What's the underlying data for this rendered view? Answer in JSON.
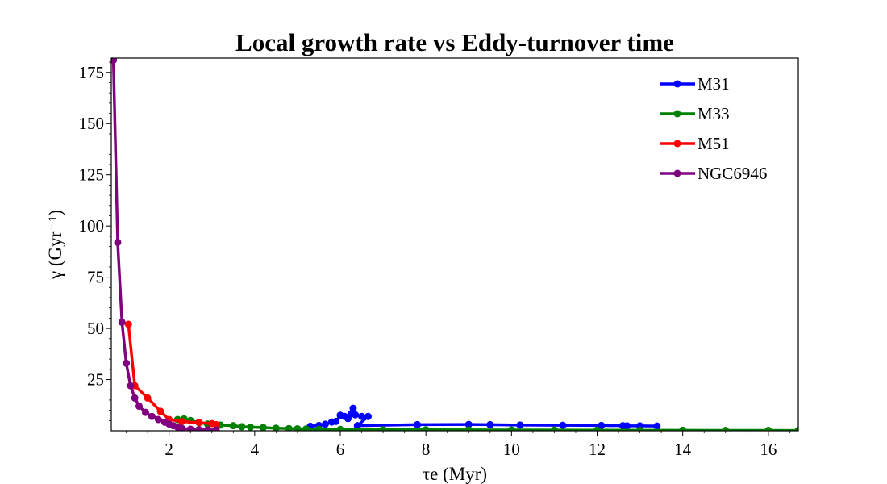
{
  "chart_data": {
    "type": "line",
    "title": "Local growth rate vs Eddy-turnover time",
    "xlabel": "τe (Myr)",
    "ylabel": "γ (Gyr⁻¹)",
    "xlim": [
      0.65,
      16.7
    ],
    "ylim": [
      0,
      182
    ],
    "x_ticks": [
      2,
      4,
      6,
      8,
      10,
      12,
      14,
      16
    ],
    "y_ticks": [
      25,
      50,
      75,
      100,
      125,
      150,
      175
    ],
    "legend_position": "top-right",
    "grid": false,
    "series": [
      {
        "name": "M31",
        "color": "#0000ff",
        "points": [
          [
            5.3,
            2.2
          ],
          [
            5.5,
            2.6
          ],
          [
            5.65,
            3.2
          ],
          [
            5.8,
            4.3
          ],
          [
            5.9,
            4.6
          ],
          [
            6.0,
            7.6
          ],
          [
            6.1,
            7.0
          ],
          [
            6.18,
            6.0
          ],
          [
            6.25,
            8.3
          ],
          [
            6.3,
            11.0
          ],
          [
            6.35,
            7.8
          ],
          [
            6.5,
            7.0
          ],
          [
            6.65,
            7.0
          ],
          [
            6.4,
            2.5
          ],
          [
            7.8,
            3.0
          ],
          [
            9.0,
            3.1
          ],
          [
            9.5,
            3.0
          ],
          [
            10.2,
            2.8
          ],
          [
            11.2,
            2.7
          ],
          [
            12.1,
            2.6
          ],
          [
            12.6,
            2.5
          ],
          [
            12.7,
            2.4
          ],
          [
            13.0,
            2.4
          ],
          [
            13.4,
            2.3
          ]
        ]
      },
      {
        "name": "M33",
        "color": "#008000",
        "points": [
          [
            2.2,
            5.5
          ],
          [
            2.35,
            5.8
          ],
          [
            2.5,
            5.0
          ],
          [
            2.7,
            4.0
          ],
          [
            2.9,
            3.3
          ],
          [
            3.2,
            2.8
          ],
          [
            3.5,
            2.5
          ],
          [
            3.7,
            2.0
          ],
          [
            3.9,
            1.8
          ],
          [
            4.2,
            1.6
          ],
          [
            4.5,
            1.3
          ],
          [
            4.8,
            1.1
          ],
          [
            5.0,
            1.0
          ],
          [
            5.2,
            0.9
          ],
          [
            5.5,
            0.8
          ],
          [
            6.0,
            0.7
          ],
          [
            7.0,
            0.55
          ],
          [
            8.0,
            0.5
          ],
          [
            9.0,
            0.42
          ],
          [
            10.0,
            0.38
          ],
          [
            11.0,
            0.33
          ],
          [
            12.0,
            0.3
          ],
          [
            13.0,
            0.26
          ],
          [
            14.0,
            0.23
          ],
          [
            15.0,
            0.2
          ],
          [
            16.0,
            0.18
          ],
          [
            16.7,
            0.16
          ]
        ]
      },
      {
        "name": "M51",
        "color": "#ff0000",
        "points": [
          [
            1.05,
            52.0
          ],
          [
            1.2,
            22.0
          ],
          [
            1.5,
            16.0
          ],
          [
            1.8,
            9.5
          ],
          [
            2.0,
            5.5
          ],
          [
            2.3,
            4.5
          ],
          [
            2.7,
            4.0
          ],
          [
            3.0,
            3.5
          ],
          [
            3.1,
            3.0
          ]
        ]
      },
      {
        "name": "NGC6946",
        "color": "#800080",
        "points": [
          [
            0.7,
            181.0
          ],
          [
            0.8,
            92.0
          ],
          [
            0.9,
            53.0
          ],
          [
            1.0,
            33.0
          ],
          [
            1.1,
            22.0
          ],
          [
            1.2,
            16.0
          ],
          [
            1.3,
            12.0
          ],
          [
            1.45,
            9.0
          ],
          [
            1.6,
            7.0
          ],
          [
            1.75,
            5.5
          ],
          [
            1.9,
            4.2
          ],
          [
            2.0,
            3.3
          ],
          [
            2.1,
            2.5
          ],
          [
            2.2,
            1.8
          ],
          [
            2.3,
            1.2
          ],
          [
            2.5,
            0.8
          ],
          [
            2.7,
            0.6
          ],
          [
            2.9,
            0.5
          ],
          [
            3.1,
            0.4
          ]
        ]
      }
    ]
  }
}
